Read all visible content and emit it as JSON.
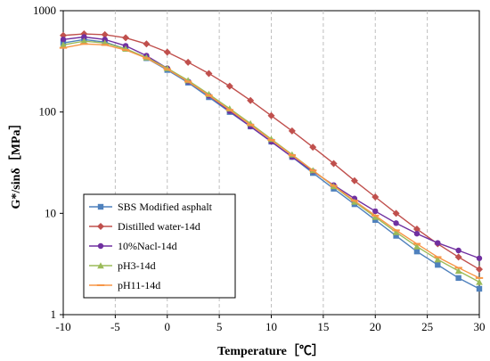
{
  "chart_data": {
    "type": "line",
    "xlabel": "Temperature［℃］",
    "ylabel": "G*/sinδ［MPa］",
    "xlim": [
      -10,
      30
    ],
    "ylim": [
      1,
      1000
    ],
    "y_scale": "log",
    "x_ticks": [
      "-10",
      "-5",
      "0",
      "5",
      "10",
      "15",
      "20",
      "25",
      "30"
    ],
    "y_ticks": [
      "1",
      "10",
      "100",
      "1000"
    ],
    "grid": "vertical dashed",
    "legend_position": "lower-left",
    "series": [
      {
        "name": "SBS Modified asphalt",
        "color": "#4F81BD",
        "marker": "square",
        "x": [
          -10,
          -8,
          -6,
          -4,
          -2,
          0,
          2,
          4,
          6,
          8,
          10,
          12,
          14,
          16,
          18,
          20,
          22,
          24,
          26,
          28,
          30
        ],
        "y": [
          480,
          520,
          490,
          420,
          340,
          260,
          195,
          140,
          100,
          72,
          51,
          36,
          25,
          17.5,
          12.3,
          8.6,
          6.0,
          4.2,
          3.1,
          2.3,
          1.8
        ]
      },
      {
        "name": "Distilled water-14d",
        "color": "#C0504D",
        "marker": "diamond",
        "x": [
          -10,
          -8,
          -6,
          -4,
          -2,
          0,
          2,
          4,
          6,
          8,
          10,
          12,
          14,
          16,
          18,
          20,
          22,
          24,
          26,
          28,
          30
        ],
        "y": [
          570,
          590,
          580,
          540,
          470,
          390,
          310,
          240,
          180,
          130,
          92,
          65,
          45,
          31,
          21,
          14.5,
          10,
          7,
          5,
          3.7,
          2.8
        ]
      },
      {
        "name": "10%Nacl-14d",
        "color": "#7030A0",
        "marker": "circle",
        "x": [
          -10,
          -8,
          -6,
          -4,
          -2,
          0,
          2,
          4,
          6,
          8,
          10,
          12,
          14,
          16,
          18,
          20,
          22,
          24,
          26,
          28,
          30
        ],
        "y": [
          520,
          550,
          520,
          450,
          360,
          270,
          200,
          145,
          102,
          72,
          51,
          36,
          26,
          19,
          14,
          10.5,
          8,
          6.3,
          5.1,
          4.3,
          3.6
        ]
      },
      {
        "name": "pH3-14d",
        "color": "#9BBB59",
        "marker": "triangle",
        "x": [
          -10,
          -8,
          -6,
          -4,
          -2,
          0,
          2,
          4,
          6,
          8,
          10,
          12,
          14,
          16,
          18,
          20,
          22,
          24,
          26,
          28,
          30
        ],
        "y": [
          460,
          500,
          480,
          420,
          345,
          270,
          205,
          150,
          108,
          77,
          54,
          38,
          26.5,
          18.5,
          13,
          9.2,
          6.5,
          4.7,
          3.5,
          2.7,
          2.1
        ]
      },
      {
        "name": "pH11-14d",
        "color": "#F79646",
        "marker": "dash",
        "x": [
          -10,
          -8,
          -6,
          -4,
          -2,
          0,
          2,
          4,
          6,
          8,
          10,
          12,
          14,
          16,
          18,
          20,
          22,
          24,
          26,
          28,
          30
        ],
        "y": [
          430,
          470,
          460,
          410,
          340,
          265,
          200,
          146,
          105,
          75,
          53,
          37.5,
          26.5,
          18.7,
          13.3,
          9.5,
          6.8,
          5.0,
          3.7,
          2.9,
          2.3
        ]
      }
    ]
  }
}
